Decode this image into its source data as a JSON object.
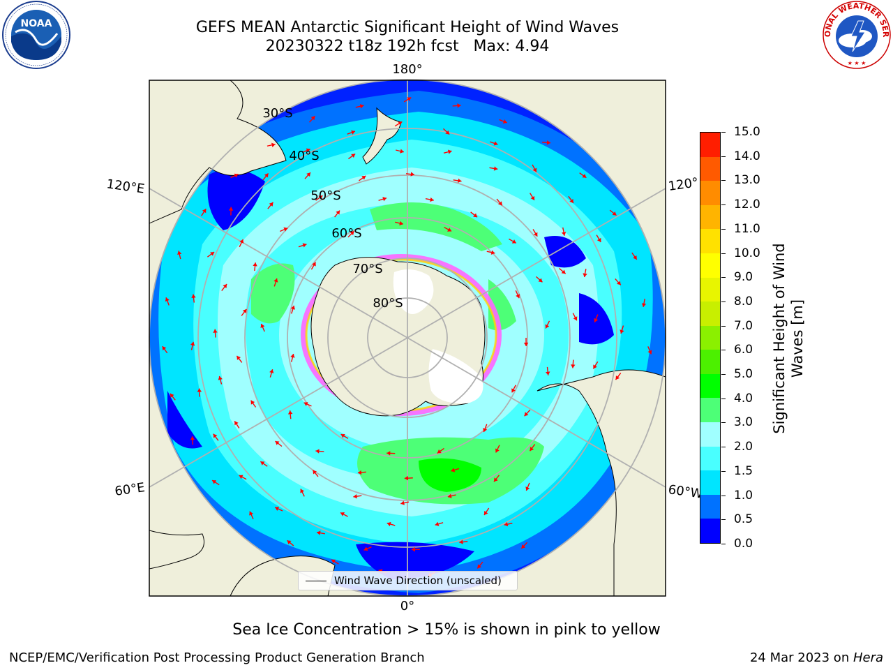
{
  "header": {
    "title_line1": "GEFS MEAN Antarctic Significant Height of Wind Waves",
    "title_line2": "20230322 t18z 192h fcst   Max: 4.94"
  },
  "logos": {
    "left": "noaa-logo",
    "right": "national-weather-service-logo",
    "left_text": "NOAA",
    "right_text": "NATIONAL WEATHER SERVICE"
  },
  "map": {
    "projection": "south-polar-stereographic",
    "lon_labels": {
      "top": "180°",
      "bottom": "0°",
      "upper_left": "120°E",
      "lower_left": "60°E",
      "upper_right": "120°",
      "lower_right": "60°W"
    },
    "lat_labels": [
      "30°S",
      "40°S",
      "50°S",
      "60°S",
      "70°S",
      "80°S"
    ],
    "legend": "Wind Wave Direction (unscaled)",
    "colors": {
      "land": "#efefdb",
      "ice_land": "#ffffff",
      "arrows": "#ff0000",
      "grid": "#b0b0b0"
    }
  },
  "colorbar": {
    "label": "Significant Height of Wind Waves [m]",
    "ticks": [
      "0.0",
      "0.5",
      "1.0",
      "1.5",
      "2.0",
      "3.0",
      "4.0",
      "5.0",
      "6.0",
      "7.0",
      "8.0",
      "9.0",
      "10.0",
      "11.0",
      "12.0",
      "13.0",
      "14.0",
      "15.0"
    ],
    "colors": [
      "#0000ff",
      "#0072ff",
      "#00e5ff",
      "#49ffff",
      "#a0ffff",
      "#4dff77",
      "#00ff00",
      "#4cf000",
      "#8bf000",
      "#c8ef00",
      "#e8f500",
      "#ffff00",
      "#ffe100",
      "#ffb400",
      "#ff8c00",
      "#ff5a00",
      "#ff1e00"
    ]
  },
  "caption": "Sea Ice Concentration > 15% is shown in pink to yellow",
  "footer": {
    "left": "NCEP/EMC/Verification Post Processing Product Generation Branch",
    "right_date": "24 Mar 2023 on ",
    "right_host": "Hera"
  }
}
